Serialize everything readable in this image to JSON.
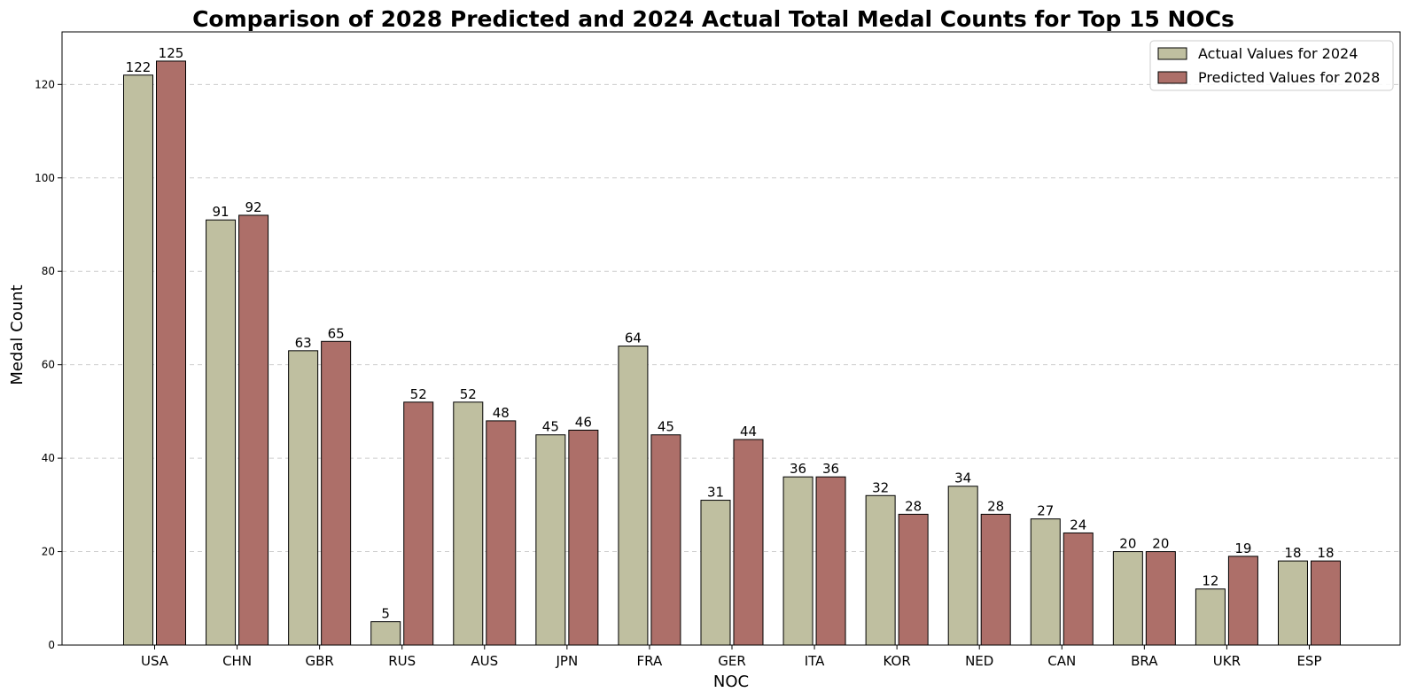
{
  "chart_data": {
    "type": "bar",
    "title": "Comparison of 2028 Predicted and 2024 Actual Total Medal Counts for Top 15 NOCs",
    "xlabel": "NOC",
    "ylabel": "Medal Count",
    "categories": [
      "USA",
      "CHN",
      "GBR",
      "RUS",
      "AUS",
      "JPN",
      "FRA",
      "GER",
      "ITA",
      "KOR",
      "NED",
      "CAN",
      "BRA",
      "UKR",
      "ESP"
    ],
    "series": [
      {
        "name": "Actual Values for 2024",
        "color": "#bfbfa0",
        "values": [
          122,
          91,
          63,
          5,
          52,
          45,
          64,
          31,
          36,
          32,
          34,
          27,
          20,
          12,
          18
        ]
      },
      {
        "name": "Predicted Values for 2028",
        "color": "#ad6f69",
        "values": [
          125,
          92,
          65,
          52,
          48,
          46,
          45,
          44,
          36,
          28,
          28,
          24,
          20,
          19,
          18
        ]
      }
    ],
    "ylim": [
      0,
      131.25
    ],
    "yticks": [
      0,
      20,
      40,
      60,
      80,
      100,
      120
    ],
    "grid": "y-dashed",
    "legend": "top-right"
  }
}
